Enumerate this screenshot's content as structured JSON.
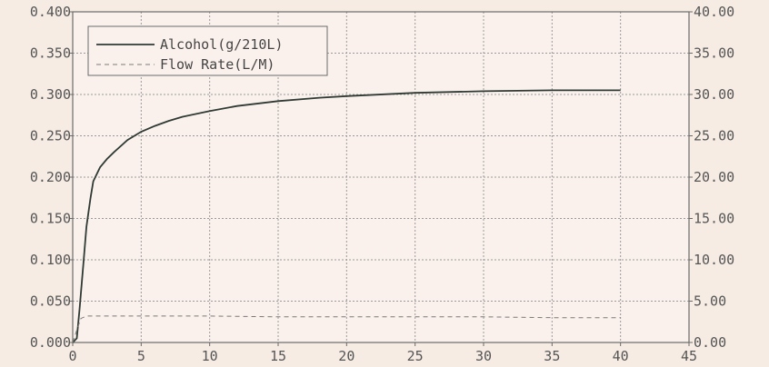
{
  "chart_data": {
    "type": "line",
    "title": "",
    "xlabel": "",
    "ylabel": "",
    "xlim": [
      0,
      45
    ],
    "ylim": [
      0,
      0.4
    ],
    "y2lim": [
      0,
      40
    ],
    "grid": true,
    "legend_position": "top-left",
    "x_ticks": [
      "0",
      "5",
      "10",
      "15",
      "20",
      "25",
      "30",
      "35",
      "40",
      "45"
    ],
    "y_ticks": [
      "0.000",
      "0.050",
      "0.100",
      "0.150",
      "0.200",
      "0.250",
      "0.300",
      "0.350",
      "0.400"
    ],
    "y2_ticks": [
      "0.00",
      "5.00",
      "10.00",
      "15.00",
      "20.00",
      "25.00",
      "30.00",
      "35.00",
      "40.00"
    ],
    "series": [
      {
        "name": "Alcohol(g/210L)",
        "axis": "left",
        "style": "solid",
        "color": "#2f3a34",
        "x": [
          0,
          0.3,
          0.5,
          0.8,
          1.0,
          1.3,
          1.5,
          2,
          2.5,
          3,
          4,
          5,
          6,
          7,
          8,
          10,
          12,
          15,
          18,
          20,
          25,
          30,
          35,
          40
        ],
        "y": [
          0.0,
          0.005,
          0.04,
          0.1,
          0.14,
          0.175,
          0.195,
          0.212,
          0.222,
          0.23,
          0.245,
          0.255,
          0.262,
          0.268,
          0.273,
          0.28,
          0.286,
          0.292,
          0.296,
          0.298,
          0.302,
          0.304,
          0.305,
          0.305
        ]
      },
      {
        "name": "Flow Rate(L/M)",
        "axis": "right",
        "style": "dashed",
        "color": "#7a7a7a",
        "x": [
          0,
          0.3,
          0.6,
          1,
          5,
          10,
          15,
          20,
          25,
          30,
          35,
          40
        ],
        "y": [
          0,
          1.5,
          2.9,
          3.2,
          3.2,
          3.2,
          3.1,
          3.1,
          3.1,
          3.1,
          3.0,
          3.0
        ]
      }
    ]
  },
  "colors": {
    "background": "#f6ece4",
    "plot_background": "#fbf1ec",
    "axis": "#6a6a6a",
    "grid": "#9a9a9a"
  }
}
